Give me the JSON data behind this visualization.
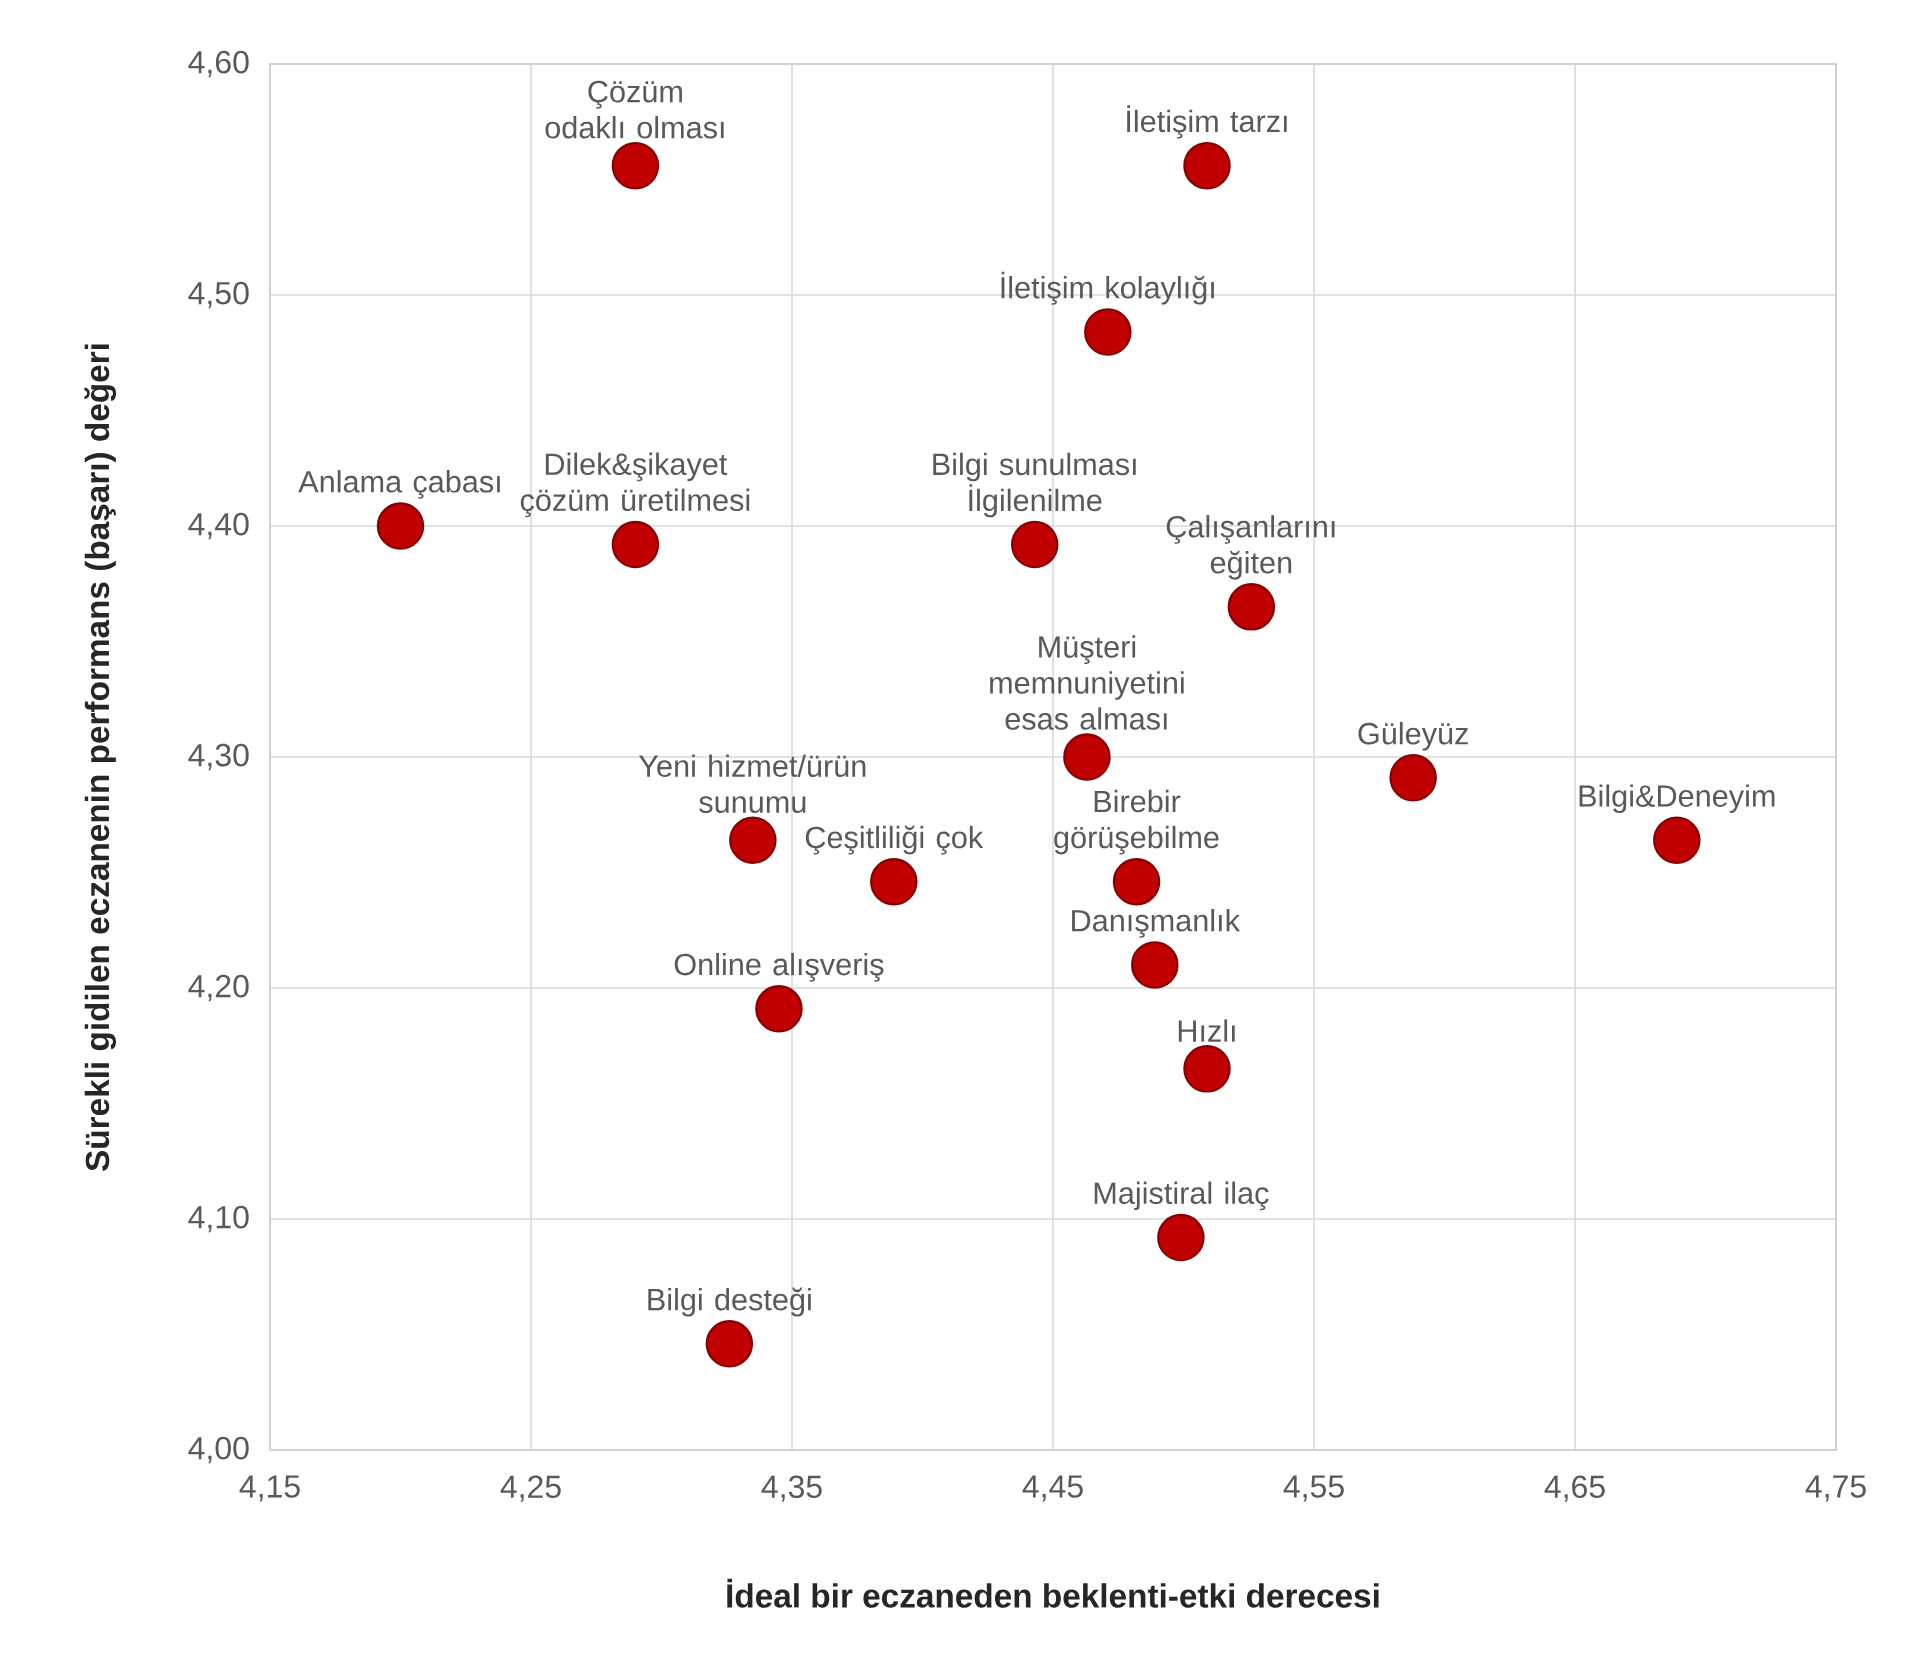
{
  "chart_data": {
    "type": "scatter",
    "xlabel": "İdeal bir eczaneden beklenti-etki derecesi",
    "ylabel": "Sürekli gidilen eczanenin performans (başarı) değeri",
    "x": [
      4.29,
      4.509,
      4.471,
      4.2,
      4.29,
      4.443,
      4.526,
      4.463,
      4.588,
      4.689,
      4.335,
      4.389,
      4.482,
      4.489,
      4.345,
      4.509,
      4.499,
      4.326
    ],
    "values": [
      4.556,
      4.556,
      4.484,
      4.4,
      4.392,
      4.392,
      4.365,
      4.3,
      4.291,
      4.264,
      4.264,
      4.246,
      4.246,
      4.21,
      4.191,
      4.165,
      4.092,
      4.046
    ],
    "color": "#c00000",
    "marker": "circle",
    "grid": true,
    "xlim": [
      4.15,
      4.75
    ],
    "ylim": [
      4.0,
      4.6
    ],
    "xticks": [
      {
        "value": 4.15,
        "label": "4,15"
      },
      {
        "value": 4.25,
        "label": "4,25"
      },
      {
        "value": 4.35,
        "label": "4,35"
      },
      {
        "value": 4.45,
        "label": "4,45"
      },
      {
        "value": 4.55,
        "label": "4,55"
      },
      {
        "value": 4.65,
        "label": "4,65"
      },
      {
        "value": 4.75,
        "label": "4,75"
      }
    ],
    "yticks": [
      {
        "value": 4.0,
        "label": "4,00"
      },
      {
        "value": 4.1,
        "label": "4,10"
      },
      {
        "value": 4.2,
        "label": "4,20"
      },
      {
        "value": 4.3,
        "label": "4,30"
      },
      {
        "value": 4.4,
        "label": "4,40"
      },
      {
        "value": 4.5,
        "label": "4,50"
      },
      {
        "value": 4.6,
        "label": "4,60"
      }
    ],
    "annotations": [
      {
        "text": "Çözüm odaklı olması",
        "x": 4.29,
        "y": 4.556
      },
      {
        "text": "İletişim tarzı",
        "x": 4.509,
        "y": 4.556
      },
      {
        "text": "İletişim kolaylığı",
        "x": 4.471,
        "y": 4.484
      },
      {
        "text": "Anlama çabası",
        "x": 4.2,
        "y": 4.4
      },
      {
        "text": "Dilek&şikayet çözüm üretilmesi",
        "x": 4.29,
        "y": 4.392
      },
      {
        "text": "Bilgi sunulması İlgilenilme",
        "x": 4.443,
        "y": 4.392
      },
      {
        "text": "Çalışanlarını eğiten",
        "x": 4.526,
        "y": 4.365
      },
      {
        "text": "Müşteri memnuniyetini esas alması",
        "x": 4.463,
        "y": 4.3
      },
      {
        "text": "Güleyüz",
        "x": 4.588,
        "y": 4.291
      },
      {
        "text": "Bilgi&Deneyim",
        "x": 4.689,
        "y": 4.264
      },
      {
        "text": "Yeni hizmet/ürün sunumu",
        "x": 4.335,
        "y": 4.264
      },
      {
        "text": "Çeşitliliği çok",
        "x": 4.389,
        "y": 4.246
      },
      {
        "text": "Birebir görüşebilme",
        "x": 4.482,
        "y": 4.246
      },
      {
        "text": "Danışmanlık",
        "x": 4.489,
        "y": 4.21
      },
      {
        "text": "Online alışveriş",
        "x": 4.345,
        "y": 4.191
      },
      {
        "text": "Hızlı",
        "x": 4.509,
        "y": 4.165
      },
      {
        "text": "Majistiral ilaç",
        "x": 4.499,
        "y": 4.092
      },
      {
        "text": "Bilgi desteği",
        "x": 4.326,
        "y": 4.046
      }
    ]
  }
}
